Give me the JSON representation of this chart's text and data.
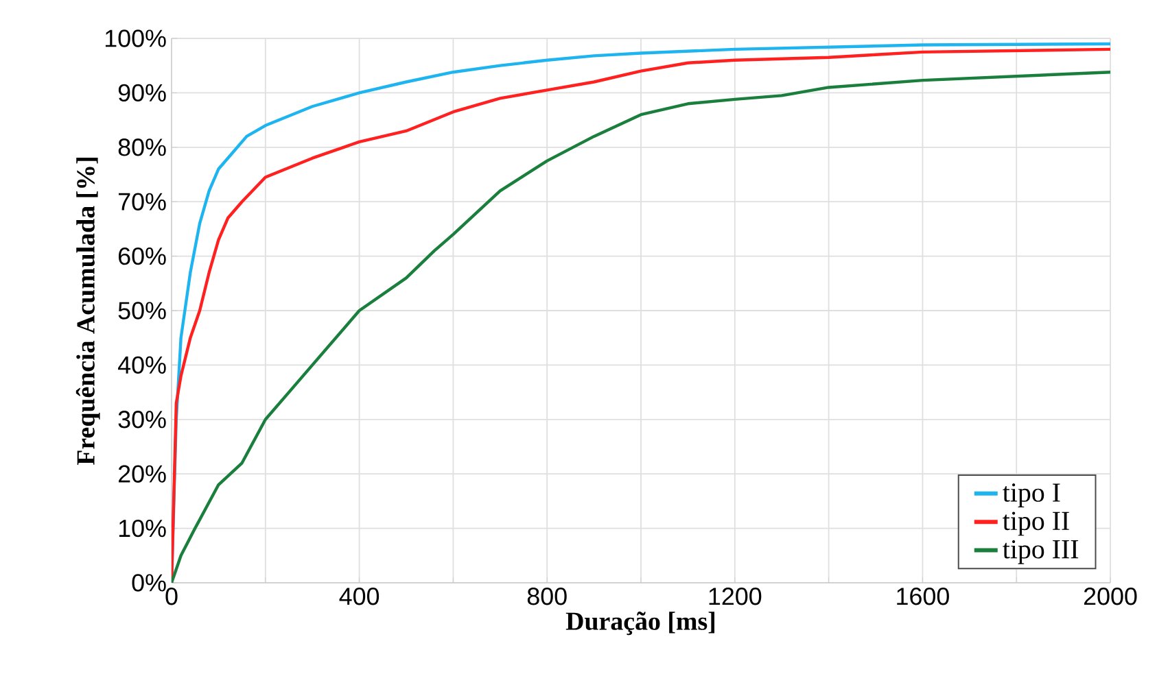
{
  "chart_data": {
    "type": "line",
    "xlabel": "Duração [ms]",
    "ylabel": "Frequência Acumulada [%]",
    "xlim": [
      0,
      2000
    ],
    "ylim": [
      0,
      100
    ],
    "xticks": [
      0,
      {
        "value": 200,
        "label": null
      },
      400,
      {
        "value": 600,
        "label": null
      },
      800,
      {
        "value": 1000,
        "label": null
      },
      1200,
      {
        "value": 1400,
        "label": null
      },
      1600,
      {
        "value": 1800,
        "label": null
      },
      2000
    ],
    "yticks": [
      {
        "value": 0,
        "label": "0%"
      },
      {
        "value": 10,
        "label": "10%"
      },
      {
        "value": 20,
        "label": "20%"
      },
      {
        "value": 30,
        "label": "30%"
      },
      {
        "value": 40,
        "label": "40%"
      },
      {
        "value": 50,
        "label": "50%"
      },
      {
        "value": 60,
        "label": "60%"
      },
      {
        "value": 70,
        "label": "70%"
      },
      {
        "value": 80,
        "label": "80%"
      },
      {
        "value": 90,
        "label": "90%"
      },
      {
        "value": 100,
        "label": "100%"
      }
    ],
    "grid": true,
    "legend": "bottom right",
    "marker": "none",
    "line_style": "solid",
    "series": [
      {
        "name": "tipo I",
        "color": "#1eb4f0",
        "x": [
          0,
          10,
          20,
          40,
          60,
          80,
          100,
          130,
          160,
          200,
          300,
          400,
          500,
          600,
          700,
          800,
          900,
          1000,
          1200,
          1600,
          2000
        ],
        "values": [
          0,
          30,
          45,
          57,
          66,
          72,
          76,
          79,
          82,
          84,
          87.5,
          90,
          92,
          93.8,
          95,
          96,
          96.8,
          97.3,
          98,
          98.8,
          99
        ]
      },
      {
        "name": "tipo II",
        "color": "#ff2020",
        "x": [
          0,
          10,
          20,
          40,
          60,
          80,
          100,
          120,
          150,
          200,
          300,
          400,
          500,
          600,
          700,
          800,
          900,
          1000,
          1100,
          1200,
          1400,
          1500,
          1600,
          2000
        ],
        "values": [
          0,
          33,
          38,
          45,
          50,
          57,
          63,
          67,
          70,
          74.5,
          78,
          81,
          83,
          86.5,
          89,
          90.5,
          92,
          94,
          95.5,
          96,
          96.5,
          97,
          97.5,
          98
        ]
      },
      {
        "name": "tipo III",
        "color": "#1a7f3c",
        "x": [
          0,
          20,
          50,
          100,
          150,
          200,
          250,
          300,
          400,
          450,
          500,
          560,
          600,
          700,
          800,
          900,
          1000,
          1100,
          1200,
          1300,
          1400,
          1600,
          2000
        ],
        "values": [
          0,
          5,
          10,
          18,
          22,
          30,
          35,
          40,
          50,
          53,
          56,
          61,
          64,
          72,
          77.5,
          82,
          86,
          88,
          88.8,
          89.5,
          91,
          92.3,
          93.8
        ]
      }
    ]
  }
}
